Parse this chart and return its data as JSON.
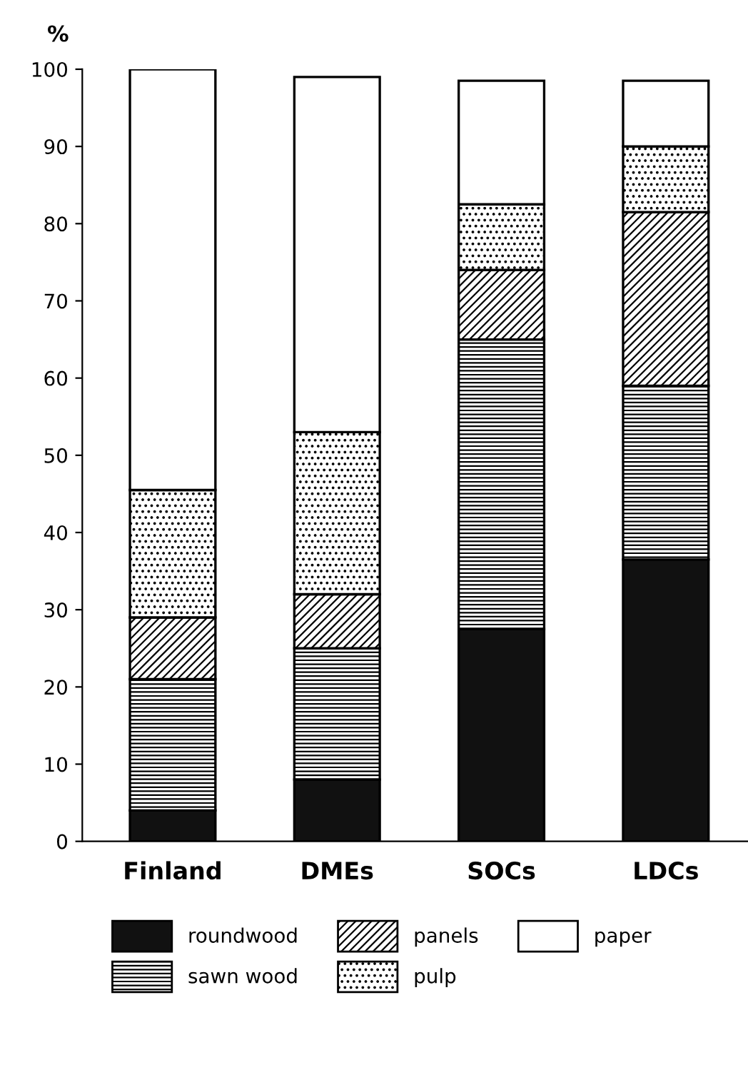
{
  "chart_data": {
    "type": "bar",
    "stacked": true,
    "ylabel": "%",
    "categories": [
      "Finland",
      "DMEs",
      "SOCs",
      "LDCs"
    ],
    "series": [
      {
        "name": "roundwood",
        "color": "#111111",
        "values": [
          4,
          8,
          27.5,
          36.5
        ]
      },
      {
        "name": "sawn wood",
        "color": "#000000",
        "values": [
          17,
          17,
          37.5,
          22.5
        ]
      },
      {
        "name": "panels",
        "color": "#000000",
        "values": [
          8,
          7,
          9,
          22.5
        ]
      },
      {
        "name": "pulp",
        "color": "#000000",
        "values": [
          16.5,
          21,
          8.5,
          8.5
        ]
      },
      {
        "name": "paper",
        "color": "#ffffff",
        "values": [
          54.5,
          46,
          16,
          8.5
        ]
      }
    ],
    "ylim": [
      0,
      100
    ],
    "yticks": [
      0,
      10,
      20,
      30,
      40,
      50,
      60,
      70,
      80,
      90,
      100
    ],
    "grid": false,
    "legend": "bottom"
  }
}
